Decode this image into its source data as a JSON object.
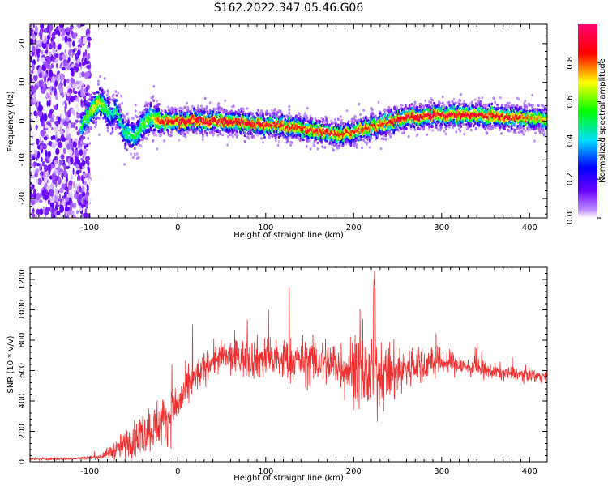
{
  "title": "S162.2022.347.05.46.G06",
  "chart_data": [
    {
      "type": "heatmap",
      "xlabel": "Height of straight line (km)",
      "ylabel": "Frequency (Hz)",
      "xlim": [
        -168,
        420
      ],
      "ylim": [
        -25,
        25
      ],
      "x_ticks": [
        -100,
        0,
        100,
        200,
        300,
        400
      ],
      "y_ticks": [
        -20,
        -10,
        0,
        10,
        20
      ],
      "colorbar": {
        "label": "Normalized spectral amplitude",
        "range": [
          0,
          1
        ],
        "ticks": [
          0.0,
          0.2,
          0.4,
          0.6,
          0.8
        ],
        "colors": [
          "#ffffff",
          "#8800ff",
          "#0000ff",
          "#00ffff",
          "#00ff00",
          "#ffff00",
          "#ff0000",
          "#ff0077"
        ]
      },
      "noise_band": {
        "x_range": [
          -168,
          -100
        ],
        "amplitude": 0.3
      },
      "ridge": {
        "x": [
          -110,
          -100,
          -90,
          -80,
          -75,
          -70,
          -60,
          -50,
          -40,
          -30,
          -20,
          0,
          50,
          100,
          130,
          160,
          180,
          200,
          230,
          260,
          300,
          350,
          380,
          420
        ],
        "y": [
          -2,
          2,
          5,
          3,
          1,
          3,
          -3,
          -4,
          -1,
          1,
          0,
          0,
          0,
          -1,
          -1.5,
          -2.5,
          -3.5,
          -3,
          -1,
          1,
          1.5,
          1.5,
          1,
          0.5
        ],
        "amplitude": [
          0.5,
          0.6,
          0.7,
          0.5,
          0.4,
          0.5,
          0.45,
          0.5,
          0.55,
          0.6,
          0.85,
          0.9,
          0.92,
          0.88,
          0.85,
          0.85,
          0.85,
          0.8,
          0.85,
          0.9,
          0.9,
          0.9,
          0.85,
          0.7
        ]
      }
    },
    {
      "type": "line",
      "xlabel": "Height of straight line (km)",
      "ylabel": "SNR (10 * v/v)",
      "xlim": [
        -168,
        420
      ],
      "ylim": [
        0,
        1280
      ],
      "x_ticks": [
        -100,
        0,
        100,
        200,
        300,
        400
      ],
      "y_ticks": [
        0,
        200,
        400,
        600,
        800,
        1000,
        1200
      ],
      "series": [
        {
          "color": "#f03030",
          "envelope_x": [
            -168,
            -120,
            -90,
            -70,
            -50,
            -30,
            -10,
            0,
            20,
            40,
            60,
            100,
            150,
            180,
            200,
            220,
            240,
            260,
            300,
            350,
            400,
            420
          ],
          "envelope_mean": [
            18,
            20,
            30,
            80,
            150,
            220,
            300,
            380,
            560,
            670,
            690,
            680,
            660,
            650,
            600,
            560,
            580,
            620,
            660,
            600,
            570,
            560
          ],
          "envelope_spread": [
            8,
            8,
            12,
            60,
            110,
            140,
            150,
            140,
            100,
            90,
            110,
            130,
            140,
            160,
            200,
            220,
            180,
            140,
            80,
            50,
            40,
            35
          ]
        }
      ]
    }
  ]
}
